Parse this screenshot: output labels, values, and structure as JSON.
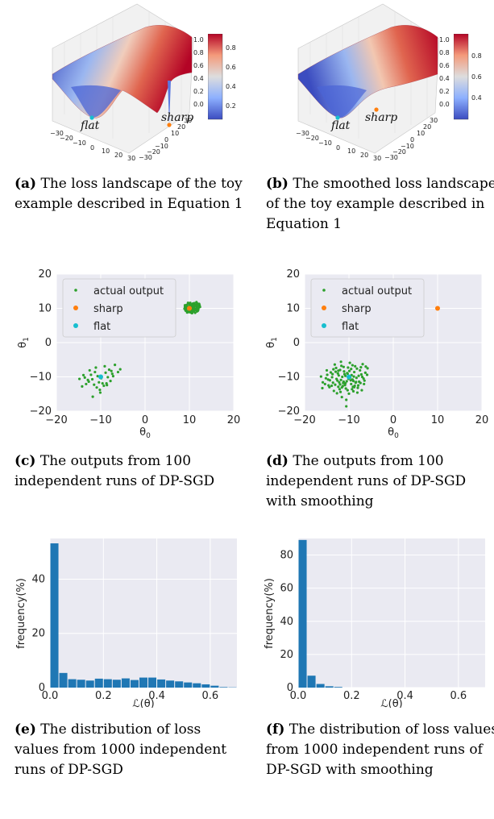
{
  "captions": {
    "a": {
      "tag": "(a)",
      "text": " The loss landscape of the toy example described in Equation 1"
    },
    "b": {
      "tag": "(b)",
      "text": " The smoothed loss landscape of the toy example described in Equation 1"
    },
    "c": {
      "tag": "(c)",
      "text": " The outputs from 100 independent runs of DP-SGD"
    },
    "d": {
      "tag": "(d)",
      "text": " The outputs from 100 independent runs of DP-SGD with smoothing"
    },
    "e": {
      "tag": "(e)",
      "text": " The distribution of loss values from 1000 independent runs of DP-SGD"
    },
    "f": {
      "tag": "(f)",
      "text": " The distribution of loss values from 1000 independent runs of DP-SGD with smoothing"
    }
  },
  "chart_data": [
    {
      "id": "a",
      "type": "surface3d",
      "annotations": [
        "flat",
        "sharp"
      ],
      "xticks": [
        "−30",
        "−20",
        "−10",
        "0",
        "10",
        "20",
        "30"
      ],
      "yticks": [
        "30",
        "20",
        "10",
        "0",
        "−10",
        "−20",
        "−30"
      ],
      "zticks": [
        "1.0",
        "0.8",
        "0.6",
        "0.4",
        "0.2",
        "0.0"
      ],
      "colorbar_ticks": [
        "0.8",
        "0.6",
        "0.4",
        "0.2"
      ],
      "colors": {
        "low": "#3b4cc0",
        "mid": "#dddddd",
        "high": "#b40426",
        "flat": "#17becf",
        "sharp": "#ff7f0e"
      }
    },
    {
      "id": "b",
      "type": "surface3d",
      "annotations": [
        "flat",
        "sharp"
      ],
      "xticks": [
        "−30",
        "−20",
        "−10",
        "0",
        "10",
        "20",
        "30"
      ],
      "yticks": [
        "30",
        "20",
        "10",
        "0",
        "−10",
        "−20",
        "−30"
      ],
      "zticks": [
        "1.0",
        "0.8",
        "0.6",
        "0.4",
        "0.2",
        "0.0"
      ],
      "colorbar_ticks": [
        "0.8",
        "0.6",
        "0.4"
      ],
      "colors": {
        "low": "#3b4cc0",
        "mid": "#dddddd",
        "high": "#b40426",
        "flat": "#17becf",
        "sharp": "#ff7f0e"
      }
    },
    {
      "id": "c",
      "type": "scatter",
      "xlabel": "θ0",
      "ylabel": "θ1",
      "xlim": [
        -20,
        20
      ],
      "ylim": [
        -20,
        20
      ],
      "xticks": [
        "−20",
        "−10",
        "0",
        "10",
        "20"
      ],
      "yticks": [
        "20",
        "10",
        "0",
        "−10",
        "−20"
      ],
      "legend": [
        "actual output",
        "sharp",
        "flat"
      ],
      "legend_position": "top-left",
      "series": [
        {
          "name": "actual output",
          "color": "#2ca02c",
          "points": [
            [
              9.1,
              10.2
            ],
            [
              9.6,
              9.1
            ],
            [
              10.4,
              10.8
            ],
            [
              11.2,
              9.7
            ],
            [
              9.9,
              11.3
            ],
            [
              10.8,
              9.0
            ],
            [
              11.7,
              10.5
            ],
            [
              9.3,
              9.7
            ],
            [
              10.1,
              10.1
            ],
            [
              10.6,
              11.0
            ],
            [
              9.0,
              10.9
            ],
            [
              11.4,
              11.1
            ],
            [
              12.1,
              10.2
            ],
            [
              10.3,
              8.8
            ],
            [
              9.5,
              10.5
            ],
            [
              11.0,
              10.4
            ],
            [
              10.9,
              9.5
            ],
            [
              9.7,
              8.9
            ],
            [
              11.9,
              9.3
            ],
            [
              10.2,
              11.6
            ],
            [
              9.2,
              9.3
            ],
            [
              10.7,
              10.6
            ],
            [
              12.3,
              10.9
            ],
            [
              11.3,
              8.7
            ],
            [
              9.8,
              10.0
            ],
            [
              10.5,
              9.2
            ],
            [
              11.6,
              9.9
            ],
            [
              10.0,
              10.7
            ],
            [
              9.4,
              11.0
            ],
            [
              11.1,
              11.5
            ],
            [
              10.4,
              9.6
            ],
            [
              12.0,
              9.8
            ],
            [
              8.9,
              9.9
            ],
            [
              10.8,
              10.2
            ],
            [
              11.5,
              10.7
            ],
            [
              9.6,
              10.3
            ],
            [
              10.3,
              11.2
            ],
            [
              11.8,
              11.4
            ],
            [
              10.1,
              9.4
            ],
            [
              9.9,
              9.0
            ],
            [
              10.6,
              8.6
            ],
            [
              11.2,
              10.0
            ],
            [
              12.4,
              10.4
            ],
            [
              9.3,
              10.6
            ],
            [
              10.9,
              11.1
            ],
            [
              11.7,
              9.1
            ],
            [
              10.2,
              10.4
            ],
            [
              9.7,
              11.6
            ],
            [
              11.4,
              9.5
            ],
            [
              12.2,
              11.3
            ],
            [
              9.1,
              9.5
            ],
            [
              10.5,
              10.9
            ],
            [
              11.0,
              9.2
            ],
            [
              10.0,
              9.8
            ],
            [
              9.8,
              11.4
            ],
            [
              11.3,
              10.8
            ],
            [
              12.0,
              9.6
            ],
            [
              10.7,
              9.8
            ],
            [
              9.5,
              8.8
            ],
            [
              11.9,
              10.8
            ],
            [
              10.3,
              10.0
            ],
            [
              9.0,
              10.4
            ],
            [
              11.6,
              11.8
            ],
            [
              10.8,
              11.4
            ],
            [
              10.1,
              8.9
            ],
            [
              -12.5,
              -8.1
            ],
            [
              -8.7,
              -11.9
            ],
            [
              -10.2,
              -13.8
            ],
            [
              -13.6,
              -10.2
            ],
            [
              -7.4,
              -9.1
            ],
            [
              -11.1,
              -7.3
            ],
            [
              -14.2,
              -12.8
            ],
            [
              -9.3,
              -12.6
            ],
            [
              -6.1,
              -8.6
            ],
            [
              -12.9,
              -10.9
            ],
            [
              -10.7,
              -9.8
            ],
            [
              -8.1,
              -7.9
            ],
            [
              -11.8,
              -15.8
            ],
            [
              -9.9,
              -10.4
            ],
            [
              -7.8,
              -11.2
            ],
            [
              -13.3,
              -12.1
            ],
            [
              -10.4,
              -11.6
            ],
            [
              -6.8,
              -6.5
            ],
            [
              -12.2,
              -9.4
            ],
            [
              -8.9,
              -8.8
            ],
            [
              -11.5,
              -12.3
            ],
            [
              -9.1,
              -6.9
            ],
            [
              -7.2,
              -9.8
            ],
            [
              -14.8,
              -10.6
            ],
            [
              -10.9,
              -13.1
            ],
            [
              -12.7,
              -11.4
            ],
            [
              -8.4,
              -10.1
            ],
            [
              -11.3,
              -8.6
            ],
            [
              -9.6,
              -11.9
            ],
            [
              -5.6,
              -7.8
            ],
            [
              -13.9,
              -9.5
            ],
            [
              -10.1,
              -14.6
            ],
            [
              -8.6,
              -12.4
            ],
            [
              -11.9,
              -10.7
            ],
            [
              -7.6,
              -8.3
            ]
          ]
        },
        {
          "name": "sharp",
          "color": "#ff7f0e",
          "points": [
            [
              10,
              10
            ]
          ]
        },
        {
          "name": "flat",
          "color": "#17becf",
          "points": [
            [
              -10,
              -10
            ]
          ]
        }
      ]
    },
    {
      "id": "d",
      "type": "scatter",
      "xlabel": "θ0",
      "ylabel": "θ1",
      "xlim": [
        -20,
        20
      ],
      "ylim": [
        -20,
        20
      ],
      "xticks": [
        "−20",
        "−10",
        "0",
        "10",
        "20"
      ],
      "yticks": [
        "20",
        "10",
        "0",
        "−10",
        "−20"
      ],
      "legend": [
        "actual output",
        "sharp",
        "flat"
      ],
      "legend_position": "top-left",
      "series": [
        {
          "name": "actual output",
          "color": "#2ca02c",
          "points": [
            [
              -12.4,
              -8.2
            ],
            [
              -8.5,
              -11.7
            ],
            [
              -10.3,
              -13.9
            ],
            [
              -13.8,
              -10.1
            ],
            [
              -7.2,
              -9.3
            ],
            [
              -11.2,
              -7.1
            ],
            [
              -14.6,
              -12.5
            ],
            [
              -9.1,
              -12.9
            ],
            [
              -6.3,
              -8.8
            ],
            [
              -12.8,
              -10.6
            ],
            [
              -10.8,
              -9.7
            ],
            [
              -8.2,
              -7.6
            ],
            [
              -11.6,
              -15.9
            ],
            [
              -9.7,
              -10.2
            ],
            [
              -7.7,
              -11.4
            ],
            [
              -13.1,
              -12.3
            ],
            [
              -10.5,
              -11.3
            ],
            [
              -6.9,
              -6.3
            ],
            [
              -12.3,
              -9.6
            ],
            [
              -8.8,
              -8.6
            ],
            [
              -11.4,
              -12.7
            ],
            [
              -9.2,
              -6.6
            ],
            [
              -7.0,
              -10.0
            ],
            [
              -15.2,
              -10.4
            ],
            [
              -10.7,
              -13.4
            ],
            [
              -12.6,
              -11.1
            ],
            [
              -8.3,
              -10.3
            ],
            [
              -11.1,
              -8.4
            ],
            [
              -9.5,
              -12.1
            ],
            [
              -5.8,
              -7.5
            ],
            [
              -13.7,
              -9.2
            ],
            [
              -10.0,
              -14.9
            ],
            [
              -8.7,
              -12.6
            ],
            [
              -11.8,
              -10.9
            ],
            [
              -7.5,
              -8.1
            ],
            [
              -15.9,
              -11.6
            ],
            [
              -14.1,
              -8.7
            ],
            [
              -9.8,
              -5.9
            ],
            [
              -12.1,
              -13.6
            ],
            [
              -6.5,
              -11.1
            ],
            [
              -10.4,
              -8.9
            ],
            [
              -13.4,
              -14.1
            ],
            [
              -8.0,
              -13.2
            ],
            [
              -11.7,
              -6.8
            ],
            [
              -16.3,
              -9.9
            ],
            [
              -9.4,
              -9.5
            ],
            [
              -12.9,
              -7.4
            ],
            [
              -7.9,
              -12.5
            ],
            [
              -10.6,
              -16.7
            ],
            [
              -14.4,
              -13.0
            ],
            [
              -11.3,
              -11.8
            ],
            [
              -6.7,
              -10.5
            ],
            [
              -13.0,
              -8.5
            ],
            [
              -9.0,
              -14.2
            ],
            [
              -12.0,
              -12.2
            ],
            [
              -8.9,
              -9.9
            ],
            [
              -15.4,
              -12.1
            ],
            [
              -10.2,
              -7.3
            ],
            [
              -7.3,
              -7.2
            ],
            [
              -11.9,
              -14.4
            ],
            [
              -13.6,
              -11.7
            ],
            [
              -9.6,
              -11.0
            ],
            [
              -12.5,
              -9.0
            ],
            [
              -5.9,
              -9.4
            ],
            [
              -10.9,
              -12.4
            ],
            [
              -14.9,
              -9.4
            ],
            [
              -8.6,
              -6.9
            ],
            [
              -11.5,
              -10.0
            ],
            [
              -9.3,
              -13.6
            ],
            [
              -13.2,
              -6.4
            ],
            [
              -7.1,
              -13.9
            ],
            [
              -12.2,
              -11.6
            ],
            [
              -10.1,
              -10.6
            ],
            [
              -16.0,
              -13.3
            ],
            [
              -8.4,
              -11.5
            ],
            [
              -11.0,
              -9.2
            ],
            [
              -14.3,
              -11.0
            ],
            [
              -9.9,
              -8.3
            ],
            [
              -6.6,
              -12.1
            ],
            [
              -12.7,
              -14.8
            ],
            [
              -10.8,
              -11.9
            ],
            [
              -13.5,
              -7.8
            ],
            [
              -7.8,
              -9.7
            ],
            [
              -11.6,
              -13.1
            ],
            [
              -9.2,
              -10.8
            ],
            [
              -15.0,
              -8.1
            ],
            [
              -8.1,
              -14.6
            ],
            [
              -12.4,
              -12.9
            ],
            [
              -10.3,
              -9.1
            ],
            [
              -6.2,
              -7.0
            ],
            [
              -13.9,
              -12.6
            ],
            [
              -9.5,
              -7.7
            ],
            [
              -11.2,
              -11.4
            ],
            [
              -14.7,
              -10.8
            ],
            [
              -8.8,
              -13.0
            ],
            [
              -10.6,
              -18.6
            ],
            [
              -12.0,
              -8.0
            ],
            [
              -7.4,
              -11.8
            ],
            [
              -11.8,
              -5.6
            ],
            [
              -9.0,
              -11.2
            ]
          ]
        },
        {
          "name": "sharp",
          "color": "#ff7f0e",
          "points": [
            [
              10,
              10
            ]
          ]
        },
        {
          "name": "flat",
          "color": "#17becf",
          "points": [
            [
              -10,
              -10
            ]
          ]
        }
      ]
    },
    {
      "id": "e",
      "type": "bar",
      "xlabel": "ℒ(θ)",
      "ylabel": "frequency(%)",
      "xlim": [
        0,
        0.7
      ],
      "ylim": [
        0,
        55
      ],
      "xticks": [
        "0.0",
        "0.2",
        "0.4",
        "0.6"
      ],
      "yticks": [
        "0",
        "20",
        "40"
      ],
      "bin_width": 0.0333,
      "bin_starts": [
        0.0,
        0.0333,
        0.0667,
        0.1,
        0.1333,
        0.1667,
        0.2,
        0.2333,
        0.2667,
        0.3,
        0.3333,
        0.3667,
        0.4,
        0.4333,
        0.4667,
        0.5,
        0.5333,
        0.5667,
        0.6,
        0.6333,
        0.6667
      ],
      "values": [
        53.2,
        5.4,
        3.1,
        2.9,
        2.6,
        3.3,
        3.1,
        2.9,
        3.4,
        2.8,
        3.7,
        3.7,
        3.0,
        2.6,
        2.3,
        1.9,
        1.6,
        1.2,
        0.7,
        0.2,
        0.1
      ],
      "color": "#1f77b4"
    },
    {
      "id": "f",
      "type": "bar",
      "xlabel": "ℒ(θ)",
      "ylabel": "frequency(%)",
      "xlim": [
        0,
        0.7
      ],
      "ylim": [
        0,
        90
      ],
      "xticks": [
        "0.0",
        "0.2",
        "0.4",
        "0.6"
      ],
      "yticks": [
        "0",
        "20",
        "40",
        "60",
        "80"
      ],
      "bin_width": 0.0333,
      "bin_starts": [
        0.0,
        0.0333,
        0.0667,
        0.1,
        0.1333
      ],
      "values": [
        89.1,
        7.2,
        2.2,
        0.8,
        0.4
      ],
      "color": "#1f77b4"
    }
  ]
}
